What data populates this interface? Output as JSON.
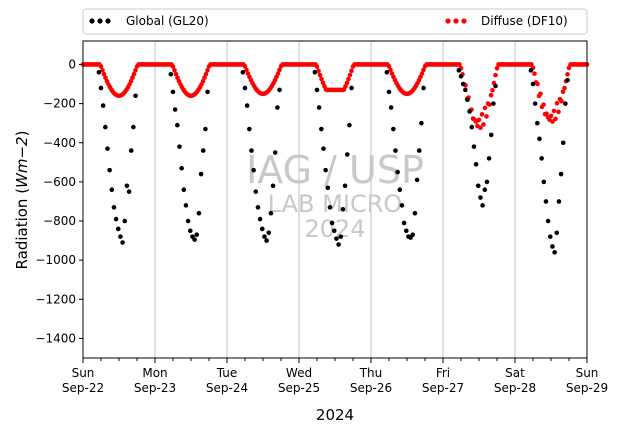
{
  "chart_data": {
    "type": "scatter",
    "xlabel": "2024",
    "ylabel_prefix": "Radiation (",
    "ylabel_unit": "Wm−2",
    "ylabel_suffix": ")",
    "ylim": [
      -1500,
      120
    ],
    "yticks": [
      0,
      -200,
      -400,
      -600,
      -800,
      -1000,
      -1200,
      -1400
    ],
    "ytick_labels": [
      "0",
      "−200",
      "−400",
      "−600",
      "−800",
      "−1000",
      "−1200",
      "−1400"
    ],
    "x_days": [
      {
        "day": "Sun",
        "date": "Sep-22"
      },
      {
        "day": "Mon",
        "date": "Sep-23"
      },
      {
        "day": "Tue",
        "date": "Sep-24"
      },
      {
        "day": "Wed",
        "date": "Sep-25"
      },
      {
        "day": "Thu",
        "date": "Sep-26"
      },
      {
        "day": "Fri",
        "date": "Sep-27"
      },
      {
        "day": "Sat",
        "date": "Sep-28"
      },
      {
        "day": "Sun",
        "date": "Sep-29"
      }
    ],
    "grid_x": true,
    "legend_position": "top",
    "watermark": [
      "IAG / USP",
      "LAB MICRO",
      "2024"
    ],
    "colors": {
      "global": "#000000",
      "diffuse": "#ff0000",
      "grid": "#b0b0b0",
      "watermark": "#c8c8c8"
    },
    "series": [
      {
        "name": "Global (GL20)",
        "color": "#000000",
        "peaks": [
          -910,
          -895,
          -900,
          -920,
          -885,
          -720,
          -960
        ],
        "x": [
          0.22,
          0.25,
          0.28,
          0.31,
          0.34,
          0.37,
          0.4,
          0.43,
          0.46,
          0.49,
          0.52,
          0.55,
          0.58,
          0.61,
          0.64,
          0.67,
          0.7,
          0.73,
          1.22,
          1.25,
          1.28,
          1.31,
          1.34,
          1.37,
          1.4,
          1.43,
          1.46,
          1.49,
          1.52,
          1.55,
          1.58,
          1.61,
          1.64,
          1.67,
          1.7,
          1.73,
          2.22,
          2.25,
          2.28,
          2.31,
          2.34,
          2.37,
          2.4,
          2.43,
          2.46,
          2.49,
          2.52,
          2.55,
          2.58,
          2.61,
          2.64,
          2.67,
          2.7,
          2.73,
          3.22,
          3.25,
          3.28,
          3.31,
          3.34,
          3.37,
          3.4,
          3.43,
          3.46,
          3.49,
          3.52,
          3.55,
          3.58,
          3.61,
          3.64,
          3.67,
          3.7,
          3.73,
          4.22,
          4.25,
          4.28,
          4.31,
          4.34,
          4.37,
          4.4,
          4.43,
          4.46,
          4.49,
          4.52,
          4.55,
          4.58,
          4.61,
          4.64,
          4.67,
          4.7,
          4.73,
          5.22,
          5.25,
          5.28,
          5.31,
          5.34,
          5.37,
          5.4,
          5.43,
          5.46,
          5.49,
          5.52,
          5.55,
          5.58,
          5.61,
          5.64,
          5.67,
          5.7,
          5.73,
          6.22,
          6.25,
          6.28,
          6.31,
          6.34,
          6.37,
          6.4,
          6.43,
          6.46,
          6.49,
          6.52,
          6.55,
          6.58,
          6.61,
          6.64,
          6.67,
          6.7,
          6.73
        ],
        "y": [
          -40,
          -120,
          -210,
          -320,
          -430,
          -540,
          -640,
          -730,
          -790,
          -840,
          -880,
          -910,
          -800,
          -620,
          -650,
          -440,
          -320,
          -160,
          -50,
          -140,
          -230,
          -310,
          -420,
          -530,
          -640,
          -720,
          -800,
          -850,
          -880,
          -895,
          -870,
          -760,
          -560,
          -440,
          -330,
          -140,
          -40,
          -120,
          -210,
          -330,
          -440,
          -540,
          -650,
          -730,
          -790,
          -840,
          -880,
          -900,
          -860,
          -760,
          -620,
          -450,
          -220,
          -130,
          -40,
          -130,
          -220,
          -330,
          -430,
          -540,
          -630,
          -730,
          -810,
          -850,
          -890,
          -920,
          -880,
          -740,
          -620,
          -460,
          -310,
          -120,
          -40,
          -140,
          -220,
          -330,
          -440,
          -550,
          -640,
          -720,
          -810,
          -850,
          -880,
          -885,
          -870,
          -760,
          -590,
          -440,
          -300,
          -120,
          -30,
          -60,
          -100,
          -130,
          -180,
          -240,
          -320,
          -420,
          -510,
          -620,
          -680,
          -720,
          -640,
          -600,
          -480,
          -360,
          -200,
          -110,
          -30,
          -100,
          -200,
          -300,
          -380,
          -480,
          -600,
          -700,
          -800,
          -880,
          -930,
          -960,
          -860,
          -700,
          -560,
          -400,
          -200,
          -80
        ]
      },
      {
        "name": "Diffuse (DF10)",
        "color": "#ff0000",
        "dayNight": true,
        "daily_min": [
          -160,
          -160,
          -150,
          -130,
          -150,
          -330,
          -300
        ],
        "daily_shape": [
          "normal",
          "normal",
          "normal",
          "flat",
          "normal",
          "spiky",
          "spiky"
        ]
      }
    ]
  }
}
